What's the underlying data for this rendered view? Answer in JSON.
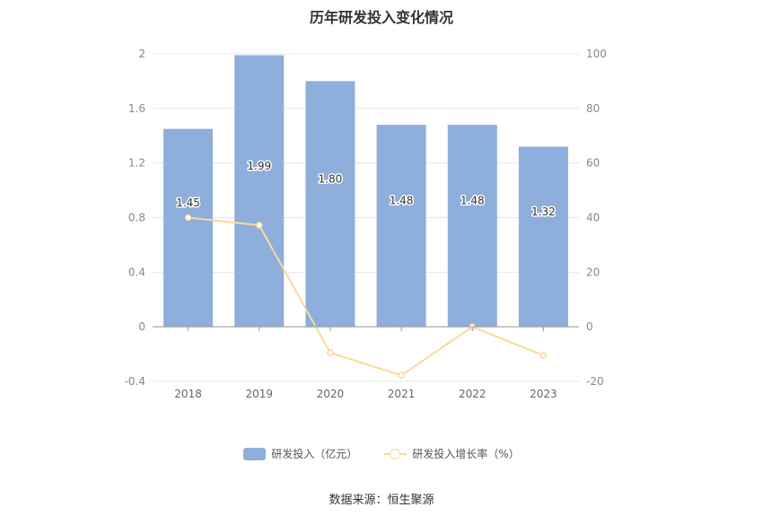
{
  "chart_data": {
    "type": "bar",
    "title": "历年研发投入变化情况",
    "categories": [
      "2018",
      "2019",
      "2020",
      "2021",
      "2022",
      "2023"
    ],
    "series": [
      {
        "name": "研发投入（亿元）",
        "type": "bar",
        "axis": "left",
        "values": [
          1.45,
          1.99,
          1.8,
          1.48,
          1.48,
          1.32
        ],
        "labels": [
          "1.45",
          "1.99",
          "1.80",
          "1.48",
          "1.48",
          "1.32"
        ]
      },
      {
        "name": "研发投入增长率（%）",
        "type": "line",
        "axis": "right",
        "values": [
          40.0,
          37.2,
          -9.5,
          -17.8,
          0.0,
          -10.5
        ]
      }
    ],
    "y_left": {
      "ylim": [
        -0.4,
        2
      ],
      "ticks": [
        "-0.4",
        "0",
        "0.4",
        "0.8",
        "1.2",
        "1.6",
        "2"
      ]
    },
    "y_right": {
      "ylim": [
        -20,
        100
      ],
      "ticks": [
        "-20",
        "0",
        "20",
        "40",
        "60",
        "80",
        "100"
      ]
    },
    "colors": {
      "bar": "#8eaedb",
      "line": "#fcd89c"
    },
    "grid": true,
    "legend_position": "bottom"
  },
  "source": "数据来源：恒生聚源"
}
